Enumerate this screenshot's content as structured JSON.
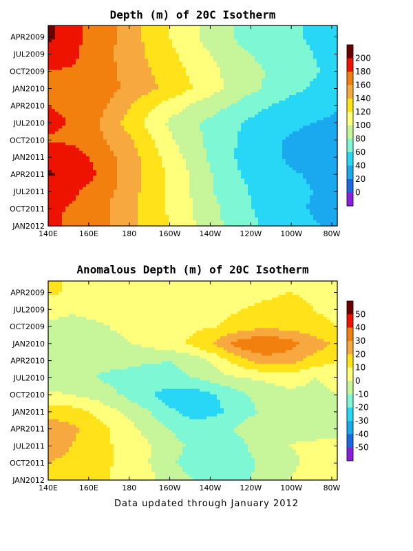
{
  "chart_data": [
    {
      "type": "heatmap",
      "title": "Depth (m) of 20C Isotherm",
      "x_ticks": [
        "140E",
        "160E",
        "180",
        "160W",
        "140W",
        "120W",
        "100W",
        "80W"
      ],
      "y_ticks": [
        "APR2009",
        "JUL2009",
        "OCT2009",
        "JAN2010",
        "APR2010",
        "JUL2010",
        "OCT2010",
        "JAN2011",
        "APR2011",
        "JUL2011",
        "OCT2011",
        "JAN2012"
      ],
      "xlim": [
        "140E",
        "80W"
      ],
      "ylim": [
        "FEB2009",
        "JAN2012"
      ],
      "colorbar_labels": [
        "200",
        "180",
        "160",
        "140",
        "120",
        "100",
        "80",
        "60",
        "40",
        "20",
        "0"
      ],
      "colorbar_colors": [
        "#6b0000",
        "#ee1300",
        "#f2800f",
        "#f7a93f",
        "#ffe21a",
        "#ffff7c",
        "#c6f59a",
        "#7ef7d4",
        "#28d7f6",
        "#1aa9ef",
        "#1b68e3",
        "#8a1dde"
      ],
      "field_at_tick_months_depth_m": [
        [
          205,
          186,
          172,
          158,
          138,
          120,
          104,
          88,
          76,
          68,
          62,
          58,
          50
        ],
        [
          192,
          184,
          170,
          156,
          140,
          126,
          110,
          96,
          84,
          74,
          66,
          60,
          52
        ],
        [
          180,
          178,
          172,
          158,
          144,
          130,
          116,
          102,
          90,
          80,
          70,
          62,
          55
        ],
        [
          170,
          172,
          170,
          160,
          148,
          134,
          120,
          104,
          90,
          78,
          66,
          58,
          50
        ],
        [
          180,
          176,
          168,
          150,
          128,
          110,
          98,
          86,
          74,
          62,
          54,
          48,
          42
        ],
        [
          186,
          178,
          162,
          140,
          118,
          98,
          84,
          72,
          60,
          50,
          44,
          40,
          36
        ],
        [
          178,
          176,
          166,
          150,
          130,
          104,
          86,
          70,
          58,
          46,
          38,
          34,
          34
        ],
        [
          196,
          190,
          176,
          156,
          136,
          112,
          92,
          72,
          56,
          46,
          38,
          34,
          34
        ],
        [
          202,
          194,
          180,
          158,
          138,
          118,
          96,
          76,
          60,
          48,
          42,
          38,
          34
        ],
        [
          190,
          184,
          172,
          156,
          136,
          118,
          98,
          78,
          64,
          52,
          44,
          40,
          36
        ],
        [
          184,
          178,
          168,
          152,
          134,
          118,
          100,
          82,
          66,
          54,
          46,
          38,
          32
        ],
        [
          182,
          178,
          168,
          154,
          136,
          120,
          102,
          84,
          68,
          58,
          50,
          42,
          36
        ]
      ]
    },
    {
      "type": "heatmap",
      "title": "Anomalous Depth (m) of 20C Isotherm",
      "x_ticks": [
        "140E",
        "160E",
        "180",
        "160W",
        "140W",
        "120W",
        "100W",
        "80W"
      ],
      "y_ticks": [
        "APR2009",
        "JUL2009",
        "OCT2009",
        "JAN2010",
        "APR2010",
        "JUL2010",
        "OCT2010",
        "JAN2011",
        "APR2011",
        "JUL2011",
        "OCT2011",
        "JAN2012"
      ],
      "xlim": [
        "140E",
        "80W"
      ],
      "ylim": [
        "FEB2009",
        "JAN2012"
      ],
      "colorbar_labels": [
        "50",
        "40",
        "30",
        "20",
        "10",
        "0",
        "-10",
        "-20",
        "-30",
        "-40",
        "-50"
      ],
      "colorbar_colors": [
        "#6b0000",
        "#ee1300",
        "#f2800f",
        "#f7a93f",
        "#ffe21a",
        "#ffff7c",
        "#c6f59a",
        "#7ef7d4",
        "#28d7f6",
        "#1aa9ef",
        "#1b68e3",
        "#8a1dde"
      ],
      "field_at_tick_months_anomaly_m": [
        [
          12,
          8,
          6,
          4,
          6,
          8,
          6,
          4,
          6,
          8,
          10,
          8,
          6
        ],
        [
          4,
          2,
          4,
          6,
          4,
          2,
          4,
          6,
          10,
          12,
          14,
          10,
          8
        ],
        [
          -2,
          -4,
          -2,
          2,
          4,
          6,
          8,
          10,
          14,
          18,
          16,
          12,
          10
        ],
        [
          -6,
          -6,
          -4,
          -2,
          2,
          6,
          12,
          22,
          36,
          40,
          34,
          26,
          18
        ],
        [
          -10,
          -10,
          -8,
          -6,
          -8,
          -10,
          -6,
          4,
          16,
          26,
          24,
          16,
          10
        ],
        [
          -8,
          -8,
          -10,
          -14,
          -16,
          -14,
          -10,
          -4,
          0,
          2,
          4,
          0,
          2
        ],
        [
          2,
          0,
          -4,
          -10,
          -18,
          -24,
          -26,
          -20,
          -12,
          -6,
          -2,
          -2,
          0
        ],
        [
          16,
          14,
          8,
          0,
          -8,
          -18,
          -24,
          -22,
          -14,
          -8,
          -4,
          -4,
          -2
        ],
        [
          26,
          22,
          14,
          6,
          -2,
          -10,
          -16,
          -14,
          -8,
          -4,
          -2,
          -4,
          -6
        ],
        [
          24,
          20,
          14,
          8,
          2,
          -6,
          -12,
          -16,
          -12,
          -4,
          0,
          2,
          4
        ],
        [
          20,
          18,
          14,
          8,
          2,
          -8,
          -14,
          -18,
          -14,
          -8,
          -2,
          2,
          6
        ],
        [
          18,
          16,
          12,
          8,
          4,
          -4,
          -10,
          -14,
          -12,
          -6,
          0,
          6,
          8
        ]
      ]
    }
  ],
  "footer": "Data updated through January 2012"
}
